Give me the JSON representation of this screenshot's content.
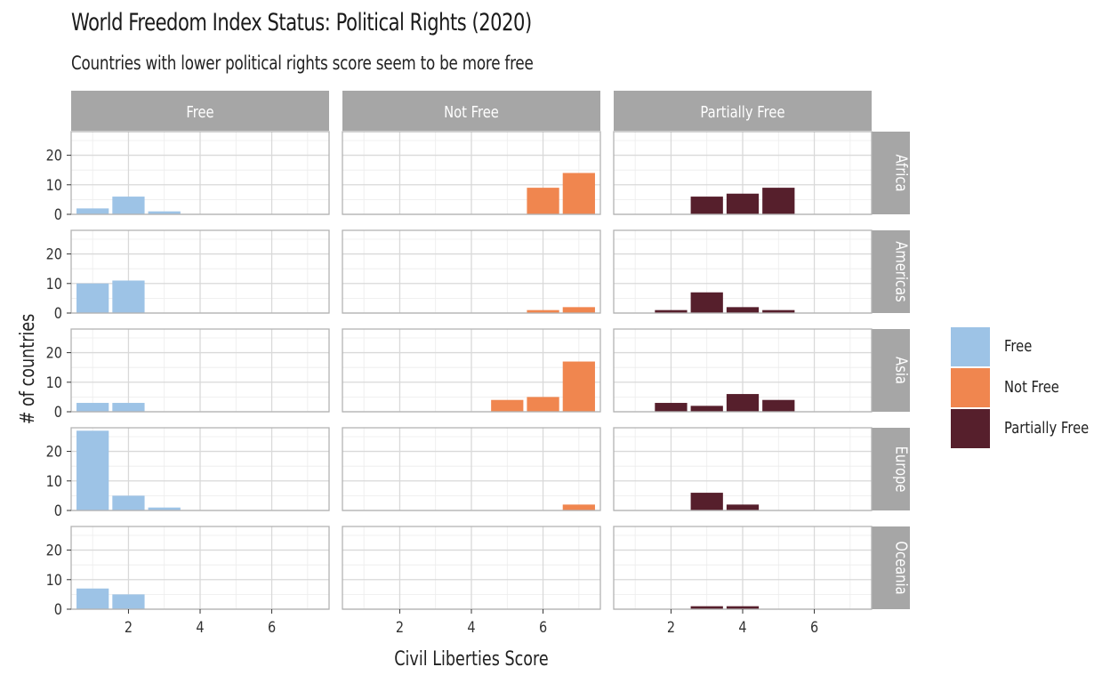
{
  "chart_data": {
    "type": "bar",
    "title": "World Freedom Index Status: Political Rights (2020)",
    "subtitle": "Countries with lower political rights score seem to be more free",
    "xlabel": "Civil Liberties Score",
    "ylabel": "# of countries",
    "xlim": [
      0.4,
      7.6
    ],
    "ylim": [
      0,
      28
    ],
    "xticks": [
      2,
      4,
      6
    ],
    "yticks": [
      0,
      10,
      20
    ],
    "grid": true,
    "legend_position": "right",
    "columns": [
      "Free",
      "Not Free",
      "Partially Free"
    ],
    "rows": [
      "Africa",
      "Americas",
      "Asia",
      "Europe",
      "Oceania"
    ],
    "colors": {
      "Free": "#9dc3e6",
      "Not Free": "#f0864f",
      "Partially Free": "#561f2c"
    },
    "panels": [
      {
        "row": "Africa",
        "column": "Free",
        "bars": [
          {
            "x": 1,
            "y": 2
          },
          {
            "x": 2,
            "y": 6
          },
          {
            "x": 3,
            "y": 1
          }
        ]
      },
      {
        "row": "Africa",
        "column": "Not Free",
        "bars": [
          {
            "x": 6,
            "y": 9
          },
          {
            "x": 7,
            "y": 14
          }
        ]
      },
      {
        "row": "Africa",
        "column": "Partially Free",
        "bars": [
          {
            "x": 3,
            "y": 6
          },
          {
            "x": 4,
            "y": 7
          },
          {
            "x": 5,
            "y": 9
          }
        ]
      },
      {
        "row": "Americas",
        "column": "Free",
        "bars": [
          {
            "x": 1,
            "y": 10
          },
          {
            "x": 2,
            "y": 11
          }
        ]
      },
      {
        "row": "Americas",
        "column": "Not Free",
        "bars": [
          {
            "x": 6,
            "y": 1
          },
          {
            "x": 7,
            "y": 2
          }
        ]
      },
      {
        "row": "Americas",
        "column": "Partially Free",
        "bars": [
          {
            "x": 2,
            "y": 1
          },
          {
            "x": 3,
            "y": 7
          },
          {
            "x": 4,
            "y": 2
          },
          {
            "x": 5,
            "y": 1
          }
        ]
      },
      {
        "row": "Asia",
        "column": "Free",
        "bars": [
          {
            "x": 1,
            "y": 3
          },
          {
            "x": 2,
            "y": 3
          }
        ]
      },
      {
        "row": "Asia",
        "column": "Not Free",
        "bars": [
          {
            "x": 5,
            "y": 4
          },
          {
            "x": 6,
            "y": 5
          },
          {
            "x": 7,
            "y": 17
          }
        ]
      },
      {
        "row": "Asia",
        "column": "Partially Free",
        "bars": [
          {
            "x": 2,
            "y": 3
          },
          {
            "x": 3,
            "y": 2
          },
          {
            "x": 4,
            "y": 6
          },
          {
            "x": 5,
            "y": 4
          }
        ]
      },
      {
        "row": "Europe",
        "column": "Free",
        "bars": [
          {
            "x": 1,
            "y": 27
          },
          {
            "x": 2,
            "y": 5
          },
          {
            "x": 3,
            "y": 1
          }
        ]
      },
      {
        "row": "Europe",
        "column": "Not Free",
        "bars": [
          {
            "x": 7,
            "y": 2
          }
        ]
      },
      {
        "row": "Europe",
        "column": "Partially Free",
        "bars": [
          {
            "x": 3,
            "y": 6
          },
          {
            "x": 4,
            "y": 2
          }
        ]
      },
      {
        "row": "Oceania",
        "column": "Free",
        "bars": [
          {
            "x": 1,
            "y": 7
          },
          {
            "x": 2,
            "y": 5
          }
        ]
      },
      {
        "row": "Oceania",
        "column": "Not Free",
        "bars": []
      },
      {
        "row": "Oceania",
        "column": "Partially Free",
        "bars": [
          {
            "x": 3,
            "y": 1
          },
          {
            "x": 4,
            "y": 1
          }
        ]
      }
    ]
  },
  "legend": {
    "items": [
      {
        "label": "Free",
        "color": "#9dc3e6"
      },
      {
        "label": "Not Free",
        "color": "#f0864f"
      },
      {
        "label": "Partially Free",
        "color": "#561f2c"
      }
    ]
  }
}
